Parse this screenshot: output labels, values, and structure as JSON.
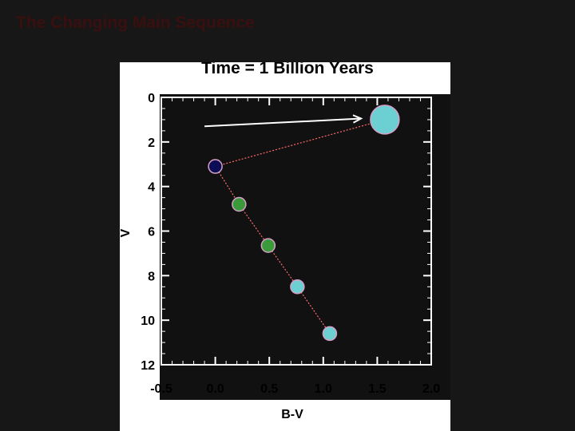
{
  "slide": {
    "title": "The Changing Main Sequence"
  },
  "chart_data": {
    "type": "scatter",
    "title": "Time = 1 Billion Years",
    "xlabel": "B-V",
    "ylabel": "V",
    "xlim": [
      -0.5,
      2.0
    ],
    "ylim": [
      12,
      0
    ],
    "y_inverted": true,
    "xticks": [
      "-0.5",
      "0.0",
      "0.5",
      "1.0",
      "1.5",
      "2.0"
    ],
    "yticks": [
      "0",
      "2",
      "4",
      "6",
      "8",
      "10",
      "12"
    ],
    "background": "#111111",
    "line_color": "#ff6b6b",
    "points": [
      {
        "x": 1.57,
        "y": 1.0,
        "size": "large",
        "color": "#6ccfd1"
      },
      {
        "x": 0.0,
        "y": 3.1,
        "size": "small",
        "color": "#0d0d55"
      },
      {
        "x": 0.22,
        "y": 4.8,
        "size": "small",
        "color": "#3a9a3a"
      },
      {
        "x": 0.49,
        "y": 6.65,
        "size": "small",
        "color": "#3a9a3a"
      },
      {
        "x": 0.76,
        "y": 8.5,
        "size": "small",
        "color": "#6ccfd1"
      },
      {
        "x": 1.06,
        "y": 10.6,
        "size": "small",
        "color": "#6ccfd1"
      }
    ],
    "arrow": {
      "from": {
        "x": -0.1,
        "y": 1.3
      },
      "to": {
        "x": 1.35,
        "y": 0.95
      },
      "color": "#ffffff"
    }
  }
}
